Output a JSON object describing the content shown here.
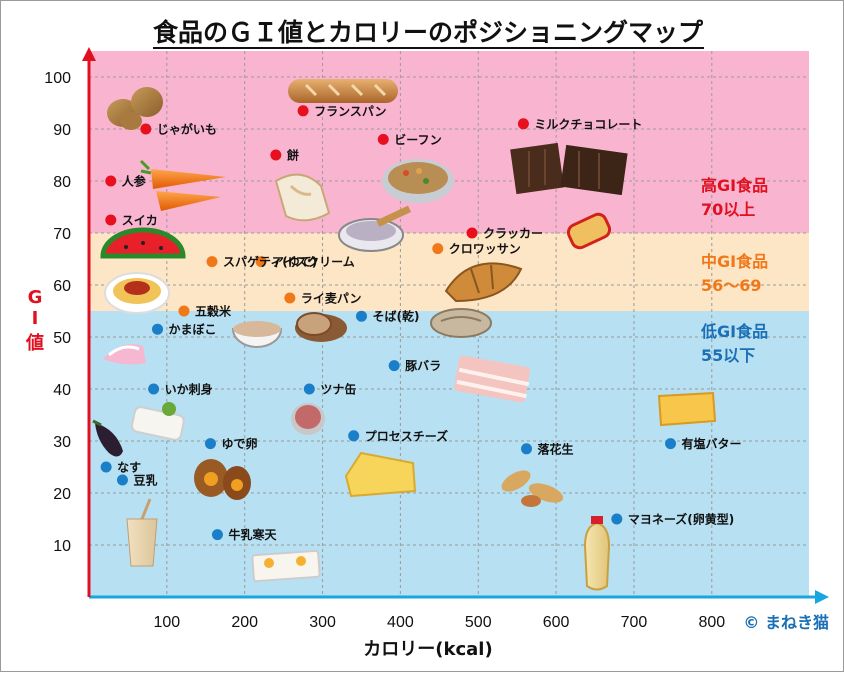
{
  "chart_data": {
    "type": "scatter",
    "title": "食品のＧＩ値とカロリーのポジショニングマップ",
    "xlabel": "カロリー(kcal)",
    "ylabel": "GI値",
    "ylabel_chars": [
      "G",
      "I",
      "値"
    ],
    "xlim": [
      0,
      900
    ],
    "ylim": [
      0,
      105
    ],
    "xticks": [
      100,
      200,
      300,
      400,
      500,
      600,
      700,
      800
    ],
    "yticks": [
      10,
      20,
      30,
      40,
      50,
      60,
      70,
      80,
      90,
      100
    ],
    "grid": true,
    "copyright": "© まねき猫",
    "zones": [
      {
        "id": "high",
        "name": "高GI食品",
        "range_label": "70以上",
        "ymin": 70,
        "ymax": 105,
        "fill": "#f9b5d0",
        "text_color": "#e01020"
      },
      {
        "id": "mid",
        "name": "中GI食品",
        "range_label": "56〜69",
        "ymin": 55,
        "ymax": 70,
        "fill": "#fde6c6",
        "text_color": "#f07818"
      },
      {
        "id": "low",
        "name": "低GI食品",
        "range_label": "55以下",
        "ymin": 0,
        "ymax": 55,
        "fill": "#b7e0f3",
        "text_color": "#1a6fb5"
      }
    ],
    "points": [
      {
        "label": "フランスパン",
        "x": 275,
        "y": 93.5,
        "zone": "high"
      },
      {
        "label": "じゃがいも",
        "x": 73,
        "y": 90,
        "zone": "high"
      },
      {
        "label": "ミルクチョコレート",
        "x": 558,
        "y": 91,
        "zone": "high"
      },
      {
        "label": "ビーフン",
        "x": 378,
        "y": 88,
        "zone": "high"
      },
      {
        "label": "餅",
        "x": 240,
        "y": 85,
        "zone": "high"
      },
      {
        "label": "人参",
        "x": 28,
        "y": 80,
        "zone": "high"
      },
      {
        "label": "スイカ",
        "x": 28,
        "y": 72.5,
        "zone": "high"
      },
      {
        "label": "クラッカー",
        "x": 492,
        "y": 70,
        "zone": "high"
      },
      {
        "label": "クロワッサン",
        "x": 448,
        "y": 67,
        "zone": "mid"
      },
      {
        "label": "アイスクリーム",
        "x": 221,
        "y": 64.5,
        "zone": "mid"
      },
      {
        "label": "スパゲティ(ゆで)",
        "x": 158,
        "y": 64.5,
        "zone": "mid"
      },
      {
        "label": "ライ麦パン",
        "x": 258,
        "y": 57.5,
        "zone": "mid"
      },
      {
        "label": "五穀米",
        "x": 122,
        "y": 55,
        "zone": "mid"
      },
      {
        "label": "そば(乾)",
        "x": 350,
        "y": 54,
        "zone": "low"
      },
      {
        "label": "かまぼこ",
        "x": 88,
        "y": 51.5,
        "zone": "low"
      },
      {
        "label": "豚バラ",
        "x": 392,
        "y": 44.5,
        "zone": "low"
      },
      {
        "label": "いか刺身",
        "x": 83,
        "y": 40,
        "zone": "low"
      },
      {
        "label": "ツナ缶",
        "x": 283,
        "y": 40,
        "zone": "low"
      },
      {
        "label": "プロセスチーズ",
        "x": 340,
        "y": 31,
        "zone": "low"
      },
      {
        "label": "ゆで卵",
        "x": 156,
        "y": 29.5,
        "zone": "low"
      },
      {
        "label": "有塩バター",
        "x": 747,
        "y": 29.5,
        "zone": "low"
      },
      {
        "label": "落花生",
        "x": 562,
        "y": 28.5,
        "zone": "low"
      },
      {
        "label": "なす",
        "x": 22,
        "y": 25,
        "zone": "low"
      },
      {
        "label": "豆乳",
        "x": 43,
        "y": 22.5,
        "zone": "low"
      },
      {
        "label": "マヨネーズ(卵黄型)",
        "x": 678,
        "y": 15,
        "zone": "low"
      },
      {
        "label": "牛乳寒天",
        "x": 165,
        "y": 12,
        "zone": "low"
      }
    ]
  }
}
